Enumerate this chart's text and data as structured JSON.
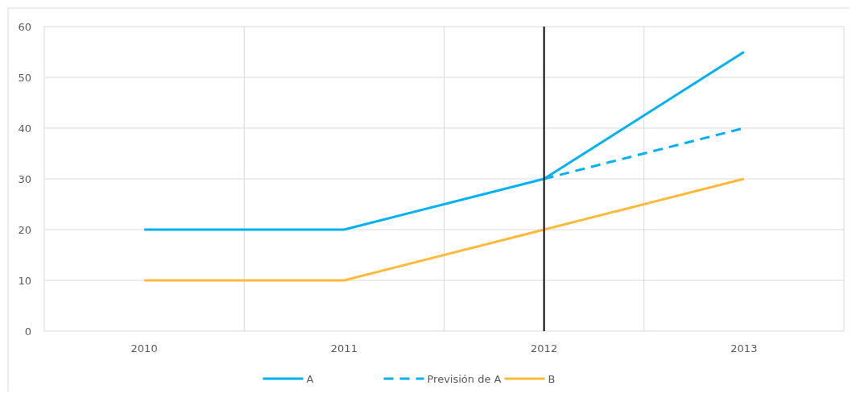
{
  "chart_data": {
    "type": "line",
    "categories": [
      "2010",
      "2011",
      "2012",
      "2013"
    ],
    "series": [
      {
        "name": "A",
        "color": "#00b0f0",
        "values": [
          20,
          20,
          30,
          55
        ],
        "line_style": "solid"
      },
      {
        "name": "Previsión de A",
        "color": "#00b0f0",
        "values": [
          null,
          null,
          30,
          40
        ],
        "line_style": "dashed"
      },
      {
        "name": "B",
        "color": "#ffba3b",
        "values": [
          10,
          10,
          20,
          30
        ],
        "line_style": "solid"
      }
    ],
    "ylim": [
      0,
      60
    ],
    "yticks": [
      0,
      10,
      20,
      30,
      40,
      50,
      60
    ],
    "grid": true,
    "legend": "bottom",
    "marker": "none",
    "ref_lines": [
      {
        "axis": "x",
        "value": "2012",
        "color": "#000000"
      }
    ]
  }
}
